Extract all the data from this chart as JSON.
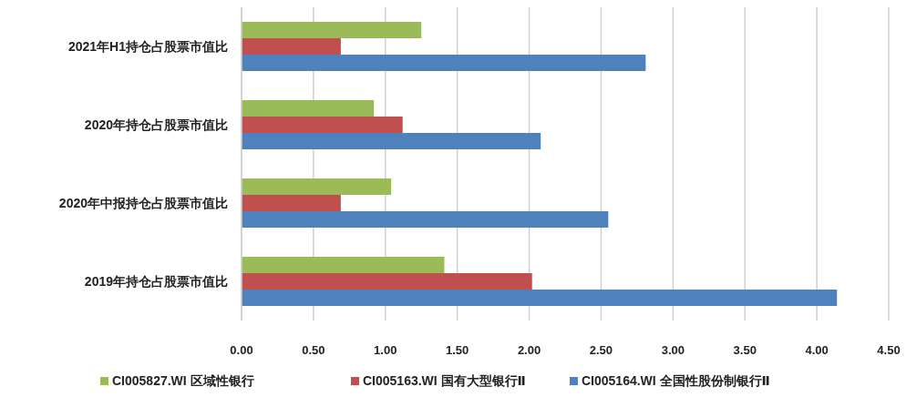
{
  "chart_data": {
    "type": "bar",
    "orientation": "horizontal",
    "categories": [
      "2021年H1持仓占股票市值比",
      "2020年持仓占股票市值比",
      "2020年中报持仓占股票市值比",
      "2019年持仓占股票市值比"
    ],
    "series": [
      {
        "name": "CI005827.WI 区域性银行",
        "color": "#9bbb59",
        "values": [
          1.25,
          0.92,
          1.04,
          1.41
        ]
      },
      {
        "name": "CI005163.WI 国有大型银行Ⅱ",
        "color": "#c0504d",
        "values": [
          0.69,
          1.12,
          0.69,
          2.02
        ]
      },
      {
        "name": "CI005164.WI 全国性股份制银行Ⅱ",
        "color": "#4f81bd",
        "values": [
          2.81,
          2.08,
          2.55,
          4.14
        ]
      }
    ],
    "xlim": [
      0,
      4.5
    ],
    "xticks": [
      {
        "value": 0,
        "label": "0.00"
      },
      {
        "value": 0.5,
        "label": "0.50"
      },
      {
        "value": 1,
        "label": "1.00"
      },
      {
        "value": 1.5,
        "label": "1.50"
      },
      {
        "value": 2,
        "label": "2.00"
      },
      {
        "value": 2.5,
        "label": "2.50"
      },
      {
        "value": 3,
        "label": "3.00"
      },
      {
        "value": 3.5,
        "label": "3.50"
      },
      {
        "value": 4,
        "label": "4.00"
      },
      {
        "value": 4.5,
        "label": "4.50"
      }
    ],
    "grid": "x",
    "legend": "bottom"
  }
}
